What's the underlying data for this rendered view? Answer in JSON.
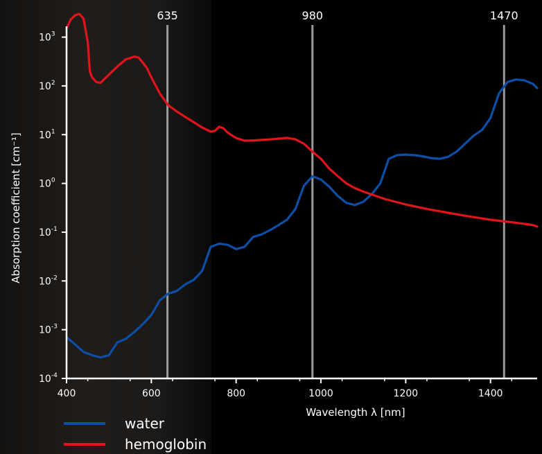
{
  "chart_data": {
    "type": "line",
    "xlabel": "Wavelength λ [nm]",
    "ylabel": "Absorption coefficient [cm⁻¹]",
    "y_scale": "log",
    "xlim": [
      400,
      1510
    ],
    "ylim": [
      0.0001,
      3000
    ],
    "x_ticks": [
      "400",
      "600",
      "800",
      "1000",
      "1200",
      "1400"
    ],
    "y_ticks": [
      {
        "base": "10",
        "exp": "-4",
        "value": 0.0001
      },
      {
        "base": "10",
        "exp": "-3",
        "value": 0.001
      },
      {
        "base": "10",
        "exp": "-2",
        "value": 0.01
      },
      {
        "base": "10",
        "exp": "-1",
        "value": 0.1
      },
      {
        "base": "10",
        "exp": "0",
        "value": 1
      },
      {
        "base": "10",
        "exp": "1",
        "value": 10
      },
      {
        "base": "10",
        "exp": "2",
        "value": 100
      },
      {
        "base": "10",
        "exp": "3",
        "value": 1000
      }
    ],
    "markers": [
      {
        "label": "635",
        "x": 638
      },
      {
        "label": "980",
        "x": 980
      },
      {
        "label": "1470",
        "x": 1432
      }
    ],
    "legend_position": "bottom-left",
    "series": [
      {
        "name": "water",
        "color": "#0d4ea6",
        "x": [
          400,
          420,
          440,
          460,
          480,
          500,
          520,
          540,
          560,
          580,
          600,
          620,
          640,
          660,
          680,
          700,
          720,
          740,
          760,
          780,
          800,
          820,
          840,
          860,
          880,
          900,
          920,
          940,
          960,
          980,
          1000,
          1020,
          1040,
          1060,
          1080,
          1100,
          1120,
          1140,
          1160,
          1180,
          1200,
          1220,
          1240,
          1260,
          1280,
          1300,
          1320,
          1340,
          1360,
          1380,
          1400,
          1420,
          1440,
          1460,
          1480,
          1500,
          1510
        ],
        "y": [
          0.0007,
          0.0005,
          0.00035,
          0.0003,
          0.00027,
          0.0003,
          0.00055,
          0.00065,
          0.0009,
          0.0013,
          0.002,
          0.004,
          0.0055,
          0.0062,
          0.0085,
          0.0105,
          0.016,
          0.05,
          0.058,
          0.055,
          0.045,
          0.05,
          0.08,
          0.09,
          0.11,
          0.14,
          0.18,
          0.3,
          0.9,
          1.4,
          1.2,
          0.85,
          0.55,
          0.4,
          0.36,
          0.42,
          0.6,
          1.0,
          3.2,
          3.8,
          3.9,
          3.8,
          3.6,
          3.3,
          3.2,
          3.5,
          4.5,
          6.5,
          9.5,
          12.5,
          22,
          70,
          120,
          135,
          130,
          110,
          90
        ]
      },
      {
        "name": "hemoglobin",
        "color": "#e0151c",
        "x": [
          400,
          410,
          420,
          430,
          440,
          450,
          455,
          460,
          470,
          480,
          500,
          520,
          540,
          560,
          570,
          580,
          590,
          600,
          620,
          640,
          660,
          680,
          700,
          720,
          740,
          750,
          760,
          770,
          780,
          800,
          820,
          840,
          860,
          880,
          900,
          920,
          940,
          960,
          980,
          1000,
          1020,
          1040,
          1060,
          1080,
          1100,
          1150,
          1200,
          1250,
          1300,
          1350,
          1400,
          1450,
          1500,
          1510
        ],
        "y": [
          1500,
          2300,
          2800,
          3000,
          2400,
          800,
          200,
          150,
          120,
          115,
          170,
          250,
          350,
          400,
          380,
          300,
          230,
          150,
          70,
          40,
          30,
          23,
          18,
          14,
          11.5,
          12,
          14.5,
          13.5,
          11,
          8.5,
          7.5,
          7.6,
          7.8,
          8,
          8.3,
          8.6,
          8,
          6.5,
          4.5,
          3.2,
          2.0,
          1.4,
          1.0,
          0.8,
          0.68,
          0.48,
          0.37,
          0.3,
          0.25,
          0.21,
          0.18,
          0.16,
          0.14,
          0.13
        ]
      }
    ]
  }
}
